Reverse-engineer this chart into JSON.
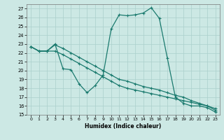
{
  "xlabel": "Humidex (Indice chaleur)",
  "bg_color": "#cce8e4",
  "grid_color": "#aacfcb",
  "line_color": "#1a7a6e",
  "xlim": [
    -0.5,
    23.5
  ],
  "ylim": [
    15,
    27.5
  ],
  "yticks": [
    15,
    16,
    17,
    18,
    19,
    20,
    21,
    22,
    23,
    24,
    25,
    26,
    27
  ],
  "xticks": [
    0,
    1,
    2,
    3,
    4,
    5,
    6,
    7,
    8,
    9,
    10,
    11,
    12,
    13,
    14,
    15,
    16,
    17,
    18,
    19,
    20,
    21,
    22,
    23
  ],
  "line1_x": [
    0,
    1,
    2,
    3,
    4,
    5,
    6,
    7,
    8,
    9,
    10,
    11,
    12,
    13,
    14,
    15,
    16,
    17,
    18,
    19,
    20,
    21,
    22,
    23
  ],
  "line1_y": [
    22.7,
    22.2,
    22.2,
    23.0,
    20.2,
    20.1,
    18.5,
    17.5,
    18.3,
    19.5,
    24.7,
    26.3,
    26.2,
    26.3,
    26.5,
    27.1,
    25.9,
    21.4,
    17.0,
    16.3,
    16.0,
    16.0,
    15.8,
    15.3
  ],
  "line2_x": [
    0,
    1,
    2,
    3,
    4,
    5,
    6,
    7,
    8,
    9,
    10,
    11,
    12,
    13,
    14,
    15,
    16,
    17,
    18,
    19,
    20,
    21,
    22,
    23
  ],
  "line2_y": [
    22.7,
    22.2,
    22.2,
    22.9,
    22.5,
    22.0,
    21.5,
    21.0,
    20.5,
    20.0,
    19.5,
    19.0,
    18.8,
    18.5,
    18.2,
    18.0,
    17.8,
    17.5,
    17.2,
    17.0,
    16.6,
    16.3,
    16.0,
    15.7
  ],
  "line3_x": [
    0,
    1,
    2,
    3,
    4,
    5,
    6,
    7,
    8,
    9,
    10,
    11,
    12,
    13,
    14,
    15,
    16,
    17,
    18,
    19,
    20,
    21,
    22,
    23
  ],
  "line3_y": [
    22.7,
    22.2,
    22.2,
    22.2,
    21.8,
    21.3,
    20.8,
    20.3,
    19.8,
    19.3,
    18.8,
    18.3,
    18.0,
    17.8,
    17.6,
    17.4,
    17.2,
    17.0,
    16.8,
    16.6,
    16.4,
    16.2,
    16.0,
    15.5
  ]
}
